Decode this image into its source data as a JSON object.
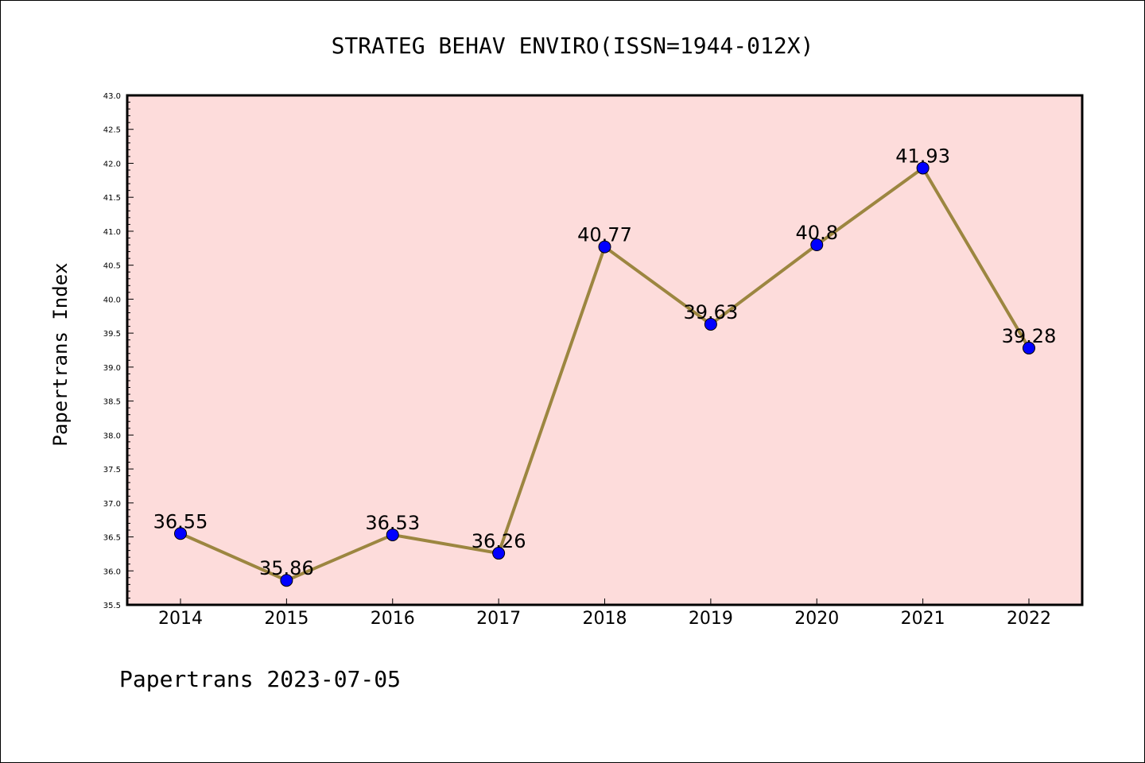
{
  "chart_data": {
    "type": "line",
    "title": "STRATEG BEHAV ENVIRO(ISSN=1944-012X)",
    "ylabel": "Papertrans Index",
    "xlabel": "",
    "categories": [
      "2014",
      "2015",
      "2016",
      "2017",
      "2018",
      "2019",
      "2020",
      "2021",
      "2022"
    ],
    "values": [
      36.55,
      35.86,
      36.53,
      36.26,
      40.77,
      39.63,
      40.8,
      41.93,
      39.28
    ],
    "data_labels": [
      "36.55",
      "35.86",
      "36.53",
      "36.26",
      "40.77",
      "39.63",
      "40.8",
      "41.93",
      "39.28"
    ],
    "ylim": [
      35.5,
      43.0
    ],
    "yticks": [
      "35.5",
      "36.0",
      "36.5",
      "37.0",
      "37.5",
      "38.0",
      "38.5",
      "39.0",
      "39.5",
      "40.0",
      "40.5",
      "41.0",
      "41.5",
      "42.0",
      "42.5",
      "43.0"
    ],
    "grid": false,
    "legend": "none",
    "colors": {
      "plot_background": "#fddcdb",
      "line": "#9c8640",
      "marker": "#0000ff"
    }
  },
  "footer": "Papertrans 2023-07-05"
}
